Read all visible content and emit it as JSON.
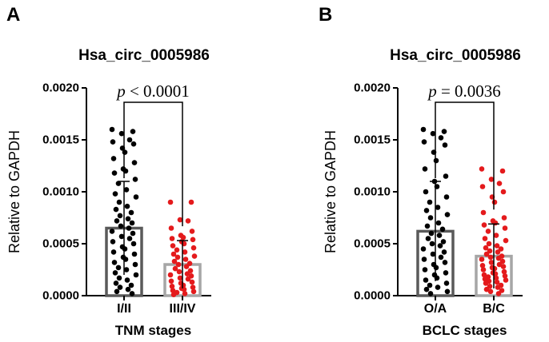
{
  "chart_data": [
    {
      "panel_letter": "A",
      "type": "bar",
      "title": "Hsa_circ_0005986",
      "ylabel": "Relative to GAPDH",
      "xlabel": "TNM stages",
      "ylim": [
        0,
        0.002
      ],
      "y_ticks": [
        "0.0000",
        "0.0005",
        "0.0010",
        "0.0015",
        "0.0020"
      ],
      "y_tick_values": [
        0,
        0.0005,
        0.001,
        0.0015,
        0.002
      ],
      "significance": {
        "p_symbol": "p",
        "text": " < 0.0001"
      },
      "categories": [
        "I/II",
        "III/IV"
      ],
      "series": [
        {
          "category": "I/II",
          "mean": 0.00065,
          "sd": 0.00045,
          "bar_color": "#5a5a5a",
          "dot_color": "#000000",
          "points": [
            0.0016,
            0.00158,
            0.00156,
            0.0015,
            0.00148,
            0.00146,
            0.00142,
            0.00138,
            0.00132,
            0.00128,
            0.00122,
            0.0012,
            0.00118,
            0.00112,
            0.00108,
            0.00102,
            0.00098,
            0.00095,
            0.0009,
            0.00086,
            0.00083,
            0.0008,
            0.00077,
            0.00074,
            0.00072,
            0.0007,
            0.00067,
            0.00065,
            0.00062,
            0.0006,
            0.00057,
            0.00055,
            0.00052,
            0.0005,
            0.00047,
            0.00045,
            0.00042,
            0.0004,
            0.00037,
            0.00035,
            0.00032,
            0.0003,
            0.00027,
            0.00025,
            0.00022,
            0.0002,
            0.00017,
            0.00015,
            0.00012,
            0.0001,
            8e-05,
            6e-05,
            4e-05,
            2e-05
          ]
        },
        {
          "category": "III/IV",
          "mean": 0.0003,
          "sd": 0.00023,
          "bar_color": "#a6a6a6",
          "dot_color": "#e41a1c",
          "points": [
            0.0009,
            0.0009,
            0.00073,
            0.00072,
            0.00065,
            0.00062,
            0.00058,
            0.00056,
            0.00055,
            0.00054,
            0.00052,
            0.0005,
            0.00048,
            0.00046,
            0.00044,
            0.00042,
            0.0004,
            0.00038,
            0.00037,
            0.00035,
            0.00033,
            0.00031,
            0.0003,
            0.00028,
            0.00026,
            0.00024,
            0.00023,
            0.00021,
            0.0002,
            0.00019,
            0.00017,
            0.00016,
            0.00014,
            0.00013,
            0.00012,
            0.0001,
            9e-05,
            8e-05,
            7e-05,
            6e-05,
            5e-05,
            4e-05,
            3e-05,
            2e-05,
            1e-05
          ]
        }
      ]
    },
    {
      "panel_letter": "B",
      "type": "bar",
      "title": "Hsa_circ_0005986",
      "ylabel": "Relative to GAPDH",
      "xlabel": "BCLC stages",
      "ylim": [
        0,
        0.002
      ],
      "y_ticks": [
        "0.0000",
        "0.0005",
        "0.0010",
        "0.0015",
        "0.0020"
      ],
      "y_tick_values": [
        0,
        0.0005,
        0.001,
        0.0015,
        0.002
      ],
      "significance": {
        "p_symbol": "p",
        "text": " = 0.0036"
      },
      "categories": [
        "O/A",
        "B/C"
      ],
      "series": [
        {
          "category": "O/A",
          "mean": 0.00062,
          "sd": 0.00048,
          "bar_color": "#5a5a5a",
          "dot_color": "#000000",
          "points": [
            0.0016,
            0.00158,
            0.00156,
            0.00152,
            0.00148,
            0.00145,
            0.00138,
            0.0013,
            0.00122,
            0.00115,
            0.0011,
            0.00105,
            0.001,
            0.00095,
            0.0009,
            0.00085,
            0.00082,
            0.00078,
            0.00075,
            0.0007,
            0.00067,
            0.00064,
            0.0006,
            0.00058,
            0.00055,
            0.00052,
            0.0005,
            0.00048,
            0.00045,
            0.00042,
            0.0004,
            0.00037,
            0.00035,
            0.00032,
            0.0003,
            0.00027,
            0.00025,
            0.00022,
            0.0002,
            0.00017,
            0.00015,
            0.00012,
            0.0001,
            8e-05,
            6e-05,
            4e-05,
            2e-05
          ]
        },
        {
          "category": "B/C",
          "mean": 0.00038,
          "sd": 0.00031,
          "bar_color": "#a6a6a6",
          "dot_color": "#e41a1c",
          "points": [
            0.00122,
            0.0012,
            0.00112,
            0.00108,
            0.00105,
            0.001,
            0.00095,
            0.0009,
            0.0008,
            0.00075,
            0.00072,
            0.0007,
            0.00068,
            0.00065,
            0.00062,
            0.00058,
            0.00055,
            0.00053,
            0.0005,
            0.00048,
            0.00046,
            0.00045,
            0.00043,
            0.00042,
            0.0004,
            0.00038,
            0.00037,
            0.00036,
            0.00035,
            0.00033,
            0.00032,
            0.0003,
            0.00029,
            0.00028,
            0.00027,
            0.00026,
            0.00025,
            0.00023,
            0.00022,
            0.00021,
            0.0002,
            0.00019,
            0.00018,
            0.00017,
            0.00016,
            0.00015,
            0.00014,
            0.00013,
            0.00012,
            0.0001,
            9e-05,
            8e-05,
            6e-05,
            5e-05,
            4e-05,
            2e-05
          ]
        }
      ]
    }
  ]
}
